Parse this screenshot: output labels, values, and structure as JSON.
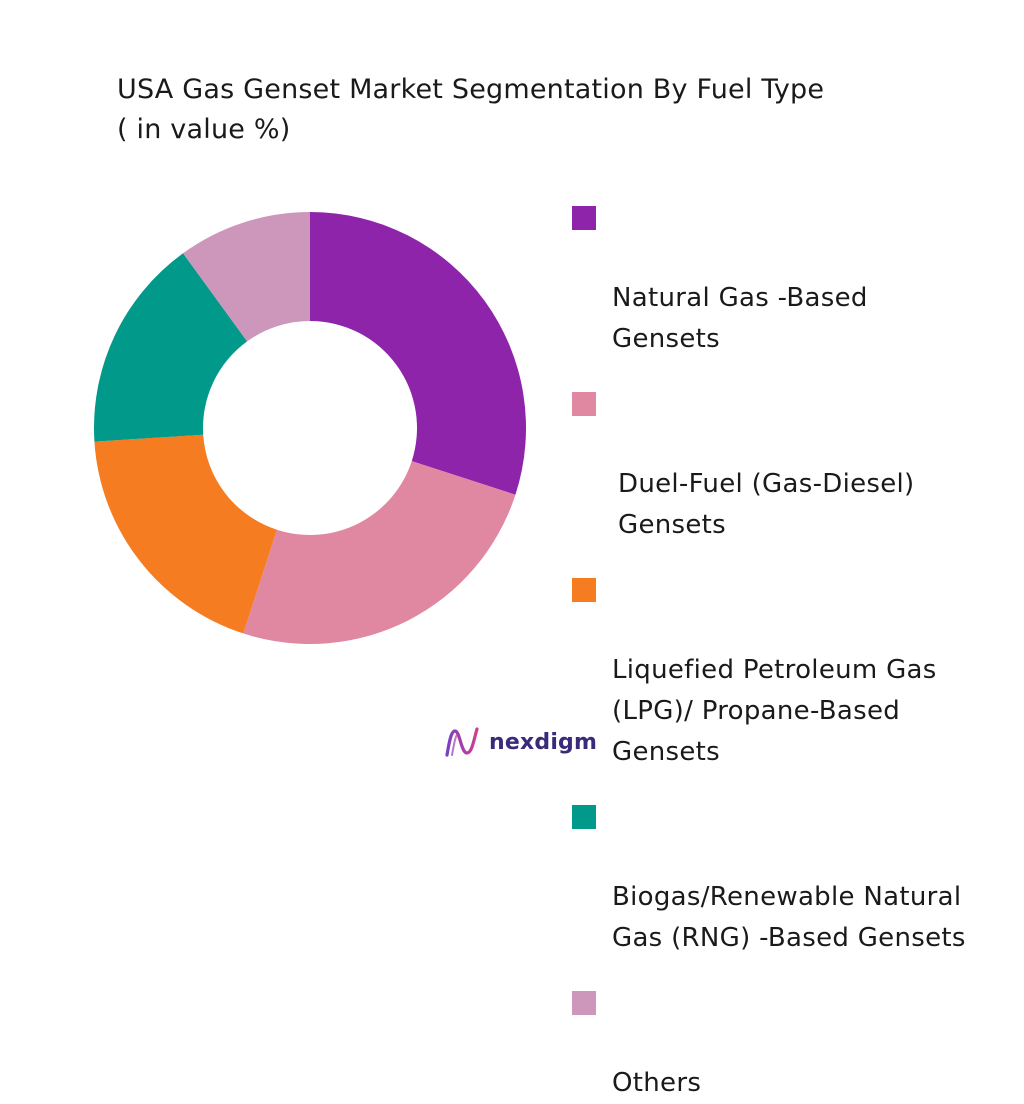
{
  "chart_data": {
    "type": "pie",
    "variant": "donut",
    "title": "USA Gas Genset Market Segmentation By Fuel Type",
    "subtitle": "( in value %)",
    "legend_position": "right",
    "series": [
      {
        "name": "Natural Gas -Based\nGensets",
        "value": 30,
        "color": "#8e24aa"
      },
      {
        "name": "Duel-Fuel (Gas-Diesel)\nGensets",
        "value": 25,
        "color": "#e088a2"
      },
      {
        "name": "Liquefied Petroleum Gas\n(LPG)/ Propane-Based\nGensets",
        "value": 19,
        "color": "#f57c20"
      },
      {
        "name": "Biogas/Renewable Natural\nGas (RNG) -Based Gensets",
        "value": 16,
        "color": "#00998a"
      },
      {
        "name": "Others",
        "value": 10,
        "color": "#cc97ba"
      }
    ]
  },
  "brand": {
    "name": "nexdigm",
    "icon": "nexdigm-logo-icon",
    "color": "#3a2a7a"
  }
}
